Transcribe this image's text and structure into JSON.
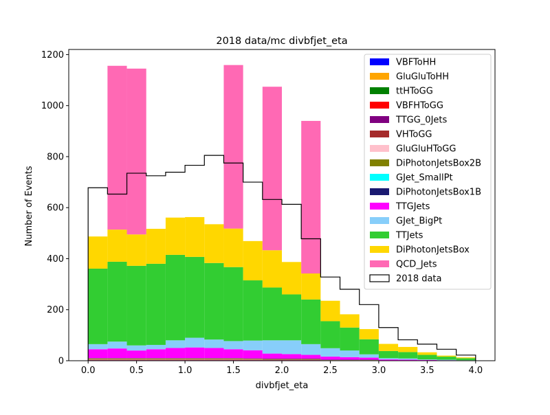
{
  "chart_data": {
    "type": "bar",
    "stacked": true,
    "title": "2018 data/mc divbfjet_eta",
    "xlabel": "divbfjet_eta",
    "ylabel": "Number of Events",
    "xlim": [
      -0.2,
      4.2
    ],
    "ylim": [
      0,
      1220
    ],
    "xticks": [
      0.0,
      0.5,
      1.0,
      1.5,
      2.0,
      2.5,
      3.0,
      3.5,
      4.0
    ],
    "xtick_labels": [
      "0.0",
      "0.5",
      "1.0",
      "1.5",
      "2.0",
      "2.5",
      "3.0",
      "3.5",
      "4.0"
    ],
    "yticks": [
      0,
      200,
      400,
      600,
      800,
      1000,
      1200
    ],
    "ytick_labels": [
      "0",
      "200",
      "400",
      "600",
      "800",
      "1000",
      "1200"
    ],
    "bin_edges": [
      0.0,
      0.2,
      0.4,
      0.6,
      0.8,
      1.0,
      1.2,
      1.4,
      1.6,
      1.8,
      2.0,
      2.2,
      2.4,
      2.6,
      2.8,
      3.0,
      3.2,
      3.4,
      3.6,
      3.8,
      4.0
    ],
    "legend_position": "top-right",
    "series": [
      {
        "name": "VBFToHH",
        "color": "#0000ff",
        "values": [
          0,
          0,
          0,
          0,
          0,
          0,
          0,
          0,
          0,
          0,
          0,
          0,
          0,
          0,
          0,
          0,
          0,
          0,
          0,
          0
        ]
      },
      {
        "name": "GluGluToHH",
        "color": "#ffa500",
        "values": [
          0,
          0,
          0,
          0,
          0,
          0,
          0,
          0,
          0,
          0,
          0,
          0,
          0,
          0,
          0,
          0,
          0,
          0,
          0,
          0
        ]
      },
      {
        "name": "ttHToGG",
        "color": "#008000",
        "values": [
          1,
          1,
          1,
          1,
          1,
          1,
          1,
          1,
          1,
          1,
          1,
          1,
          0,
          0,
          0,
          0,
          0,
          0,
          0,
          0
        ]
      },
      {
        "name": "VBFHToGG",
        "color": "#ff0000",
        "values": [
          0,
          0,
          0,
          0,
          0,
          0,
          0,
          0,
          0,
          0,
          0,
          0,
          0,
          0,
          0,
          0,
          0,
          0,
          0,
          0
        ]
      },
      {
        "name": "TTGG_0Jets",
        "color": "#800080",
        "values": [
          1,
          1,
          1,
          1,
          1,
          1,
          1,
          1,
          1,
          1,
          1,
          1,
          0,
          0,
          0,
          0,
          0,
          0,
          0,
          0
        ]
      },
      {
        "name": "VHToGG",
        "color": "#a52a2a",
        "values": [
          2,
          2,
          2,
          2,
          2,
          2,
          2,
          2,
          2,
          2,
          2,
          2,
          1,
          1,
          1,
          0,
          0,
          0,
          0,
          0
        ]
      },
      {
        "name": "GluGluHToGG",
        "color": "#ffc0cb",
        "values": [
          2,
          2,
          2,
          2,
          2,
          2,
          2,
          2,
          2,
          1,
          1,
          1,
          1,
          1,
          1,
          0,
          0,
          0,
          0,
          0
        ]
      },
      {
        "name": "DiPhotonJetsBox2B",
        "color": "#808000",
        "values": [
          3,
          3,
          3,
          3,
          3,
          3,
          3,
          3,
          2,
          2,
          2,
          2,
          1,
          1,
          1,
          1,
          0,
          0,
          0,
          0
        ]
      },
      {
        "name": "GJet_SmallPt",
        "color": "#00ffff",
        "values": [
          0,
          0,
          0,
          0,
          0,
          0,
          0,
          0,
          0,
          0,
          0,
          0,
          0,
          0,
          0,
          0,
          0,
          0,
          0,
          0
        ]
      },
      {
        "name": "DiPhotonJetsBox1B",
        "color": "#191970",
        "values": [
          1,
          1,
          1,
          1,
          1,
          1,
          1,
          1,
          1,
          1,
          1,
          1,
          1,
          1,
          1,
          0,
          0,
          0,
          0,
          0
        ]
      },
      {
        "name": "TTGJets",
        "color": "#ff00ff",
        "values": [
          35,
          38,
          30,
          35,
          40,
          42,
          40,
          35,
          32,
          20,
          18,
          15,
          12,
          10,
          8,
          4,
          4,
          3,
          2,
          1
        ]
      },
      {
        "name": "GJet_BigPt",
        "color": "#87cefa",
        "values": [
          20,
          27,
          20,
          17,
          30,
          38,
          33,
          32,
          38,
          52,
          54,
          42,
          33,
          26,
          13,
          5,
          5,
          2,
          2,
          1
        ]
      },
      {
        "name": "TTJets",
        "color": "#32cd32",
        "values": [
          296,
          313,
          312,
          318,
          335,
          317,
          300,
          290,
          236,
          207,
          180,
          175,
          106,
          90,
          59,
          28,
          25,
          18,
          12,
          8
        ]
      },
      {
        "name": "DiPhotonJetsBox",
        "color": "#ffd700",
        "values": [
          126,
          126,
          123,
          137,
          146,
          156,
          152,
          151,
          154,
          146,
          127,
          102,
          80,
          52,
          40,
          28,
          20,
          10,
          4,
          3
        ]
      },
      {
        "name": "QCD_Jets",
        "color": "#ff69b4",
        "values": [
          0,
          642,
          650,
          0,
          0,
          0,
          0,
          641,
          0,
          641,
          0,
          598,
          0,
          0,
          0,
          0,
          0,
          0,
          0,
          0
        ]
      }
    ],
    "data_series": {
      "name": "2018 data",
      "color": "#000000",
      "values": [
        678,
        653,
        735,
        725,
        739,
        766,
        805,
        775,
        700,
        632,
        613,
        478,
        328,
        280,
        220,
        130,
        82,
        65,
        45,
        22
      ]
    }
  }
}
